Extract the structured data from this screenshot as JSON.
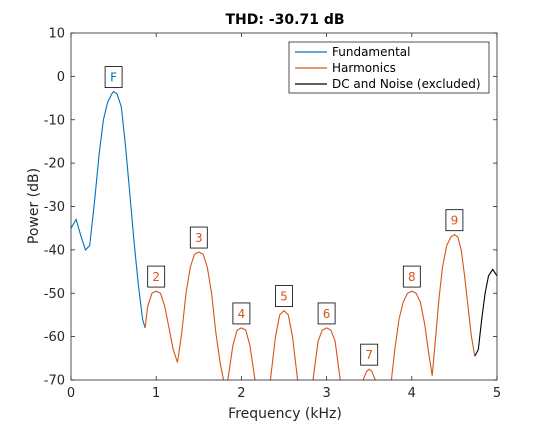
{
  "chart_data": {
    "type": "line",
    "title": "THD: -30.71 dB",
    "xlabel": "Frequency (kHz)",
    "ylabel": "Power (dB)",
    "xlim": [
      0,
      5
    ],
    "ylim": [
      -70,
      10
    ],
    "xticks": [
      0,
      1,
      2,
      3,
      4,
      5
    ],
    "yticks": [
      10,
      0,
      -10,
      -20,
      -30,
      -40,
      -50,
      -60,
      -70
    ],
    "grid": false,
    "legend_position": "top-right",
    "colors": {
      "fundamental": "#0072BD",
      "harmonics": "#D95319",
      "dc_noise": "#000000"
    },
    "series": [
      {
        "name": "Fundamental",
        "color": "#0072BD",
        "x": [
          0.0,
          0.06,
          0.12,
          0.17,
          0.22,
          0.28,
          0.33,
          0.38,
          0.43,
          0.48,
          0.5,
          0.54,
          0.59,
          0.64,
          0.69,
          0.74,
          0.79,
          0.84,
          0.87
        ],
        "y": [
          -35,
          -33,
          -37,
          -40,
          -39,
          -28,
          -18,
          -10,
          -6,
          -4,
          -3.5,
          -4,
          -7,
          -16,
          -27,
          -38,
          -48,
          -56,
          -58
        ]
      },
      {
        "name": "Harmonics",
        "color": "#D95319",
        "segments": [
          {
            "x": [
              0.87,
              0.9,
              0.95,
              1.0,
              1.05,
              1.1,
              1.15,
              1.2,
              1.25
            ],
            "y": [
              -58,
              -53,
              -50,
              -49.5,
              -50,
              -53,
              -58,
              -63,
              -66
            ]
          },
          {
            "x": [
              1.25,
              1.3,
              1.35,
              1.4,
              1.45,
              1.5,
              1.55,
              1.6,
              1.65,
              1.7,
              1.75,
              1.79
            ],
            "y": [
              -66,
              -59,
              -50,
              -44,
              -41,
              -40.5,
              -41,
              -44,
              -50,
              -59,
              -66,
              -70
            ]
          },
          {
            "x": [
              1.84,
              1.9,
              1.95,
              2.0,
              2.05,
              2.1,
              2.16
            ],
            "y": [
              -70,
              -62,
              -58.5,
              -58,
              -58.5,
              -62,
              -70
            ]
          },
          {
            "x": [
              2.34,
              2.4,
              2.45,
              2.5,
              2.55,
              2.6,
              2.66
            ],
            "y": [
              -70,
              -60,
              -55,
              -54,
              -55,
              -60,
              -70
            ]
          },
          {
            "x": [
              2.84,
              2.9,
              2.95,
              3.0,
              3.05,
              3.1,
              3.16
            ],
            "y": [
              -70,
              -61,
              -58.5,
              -58,
              -58.5,
              -61,
              -70
            ]
          },
          {
            "x": [
              3.43,
              3.47,
              3.5,
              3.53,
              3.57
            ],
            "y": [
              -70,
              -68,
              -67.5,
              -68,
              -70
            ]
          },
          {
            "x": [
              3.76,
              3.8,
              3.85,
              3.9,
              3.95,
              4.0,
              4.05,
              4.1,
              4.15,
              4.2,
              4.24
            ],
            "y": [
              -70,
              -63,
              -56,
              -52,
              -50,
              -49.5,
              -50,
              -52,
              -57,
              -64,
              -69
            ]
          },
          {
            "x": [
              4.24,
              4.28,
              4.32,
              4.36,
              4.41,
              4.46,
              4.5,
              4.54,
              4.58,
              4.62,
              4.66,
              4.7,
              4.74
            ],
            "y": [
              -69,
              -60,
              -51,
              -44,
              -39,
              -37,
              -36.5,
              -37,
              -40,
              -46,
              -53,
              -60,
              -64.5
            ]
          }
        ]
      },
      {
        "name": "DC and Noise (excluded)",
        "color": "#000000",
        "x": [
          4.74,
          4.78,
          4.82,
          4.86,
          4.9,
          4.95,
          5.0
        ],
        "y": [
          -64.5,
          -63,
          -56,
          -50,
          -46,
          -44.5,
          -46
        ]
      }
    ],
    "markers": [
      {
        "label": "F",
        "x": 0.5,
        "y": -3.5,
        "series": "Fundamental"
      },
      {
        "label": "2",
        "x": 1.0,
        "y": -49.5,
        "series": "Harmonics"
      },
      {
        "label": "3",
        "x": 1.5,
        "y": -40.5,
        "series": "Harmonics"
      },
      {
        "label": "4",
        "x": 2.0,
        "y": -58,
        "series": "Harmonics"
      },
      {
        "label": "5",
        "x": 2.5,
        "y": -54,
        "series": "Harmonics"
      },
      {
        "label": "6",
        "x": 3.0,
        "y": -58,
        "series": "Harmonics"
      },
      {
        "label": "7",
        "x": 3.5,
        "y": -67.5,
        "series": "Harmonics"
      },
      {
        "label": "8",
        "x": 4.0,
        "y": -49.5,
        "series": "Harmonics"
      },
      {
        "label": "9",
        "x": 4.5,
        "y": -36.5,
        "series": "Harmonics"
      }
    ]
  }
}
